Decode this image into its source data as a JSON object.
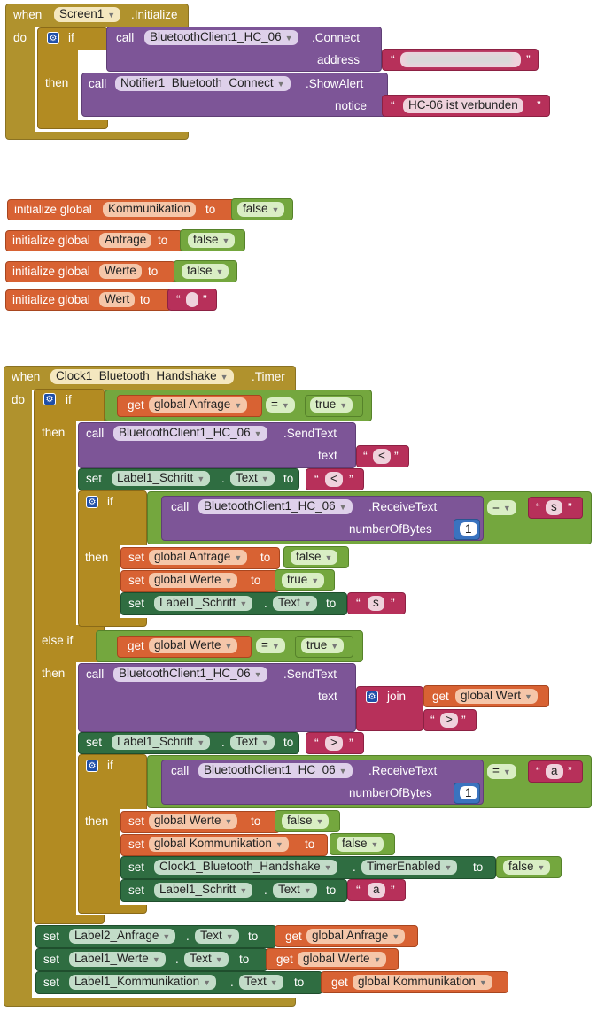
{
  "screen_init": {
    "when": "when",
    "component": "Screen1",
    "event": ".Initialize",
    "do": "do",
    "if": "if",
    "then": "then",
    "call": "call",
    "bt_component": "BluetoothClient1_HC_06",
    "connect": ".Connect",
    "address_label": "address",
    "notifier": "Notifier1_Bluetooth_Connect",
    "show_alert": ".ShowAlert",
    "notice_label": "notice",
    "notice_text": "HC-06 ist verbunden"
  },
  "globals": [
    {
      "init": "initialize global",
      "name": "Kommunikation",
      "to": "to",
      "value": "false"
    },
    {
      "init": "initialize global",
      "name": "Anfrage",
      "to": "to",
      "value": "false"
    },
    {
      "init": "initialize global",
      "name": "Werte",
      "to": "to",
      "value": "false"
    },
    {
      "init": "initialize global",
      "name": "Wert",
      "to": "to",
      "value": ""
    }
  ],
  "timer_event": {
    "when": "when",
    "component": "Clock1_Bluetooth_Handshake",
    "event": ".Timer",
    "do": "do",
    "if": "if",
    "then": "then",
    "else_if": "else if",
    "call": "call",
    "set": "set",
    "get": "get",
    "to": "to",
    "eq": "=",
    "dot": ".",
    "join": "join",
    "bt_component": "BluetoothClient1_HC_06",
    "send_text": ".SendText",
    "receive_text": ".ReceiveText",
    "text_label": "text",
    "number_of_bytes": "numberOfBytes",
    "one": "1",
    "true_val": "true",
    "false_val": "false",
    "text_prop": "Text",
    "timer_enabled": "TimerEnabled",
    "label_schritt": "Label1_Schritt",
    "label_anfrage": "Label2_Anfrage",
    "label_werte": "Label1_Werte",
    "label_komm": "Label1_Kommunikation",
    "clock": "Clock1_Bluetooth_Handshake",
    "g_anfrage": "global Anfrage",
    "g_werte": "global Werte",
    "g_wert": "global Wert",
    "g_komm": "global Kommunikation",
    "lt": "<",
    "gt": ">",
    "s": "s",
    "a": "a"
  },
  "colors": {
    "event": "#b0922d",
    "control": "#b28b22",
    "method": "#7d5597",
    "variable": "#d86233",
    "logic": "#74a73e",
    "text": "#b7305a",
    "number": "#3a73bf",
    "setter": "#2f6d41"
  },
  "icons": {
    "mutator": "gear-icon",
    "dropdown": "chevron-down-icon"
  }
}
